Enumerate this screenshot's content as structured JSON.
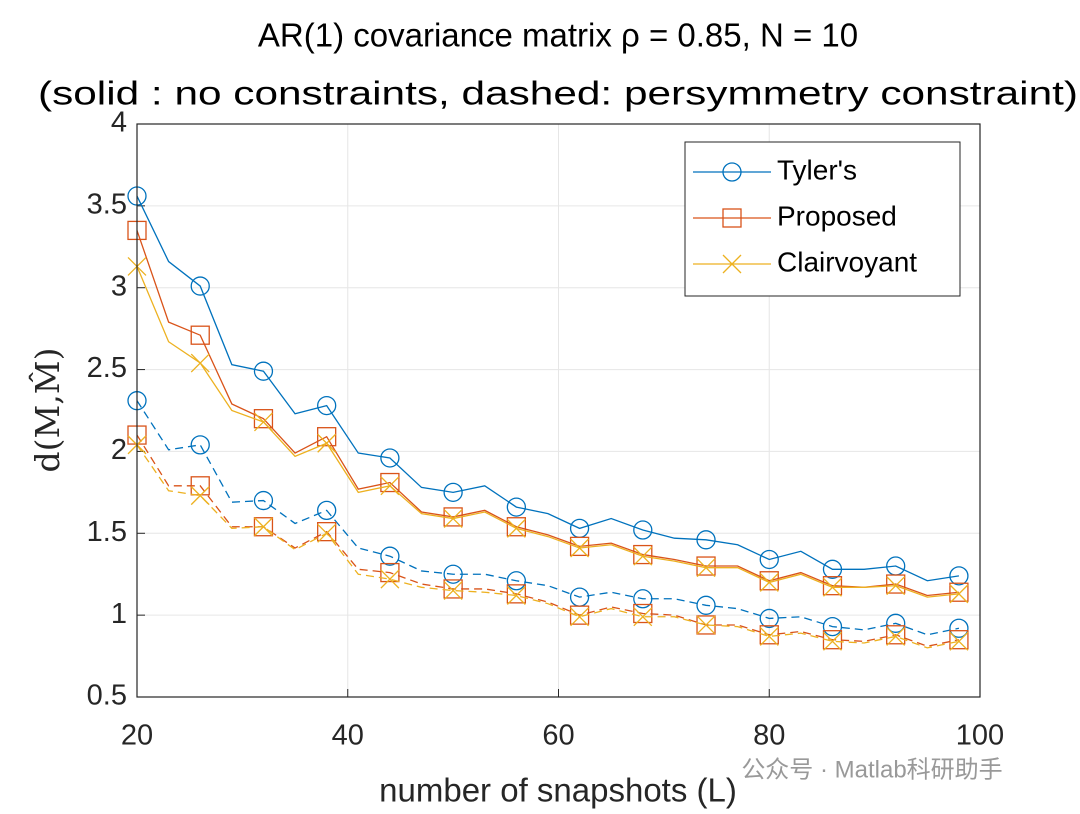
{
  "chart_data": {
    "type": "line",
    "title": "AR(1) covariance matrix ρ = 0.85, N = 10",
    "subtitle": "(solid : no constraints, dashed: persymmetry constraint)",
    "x_label": "number of snapshots (L)",
    "y_label": "d(M,M̂)",
    "watermark": "公众号 · Matlab科研助手",
    "x": [
      20,
      23,
      26,
      29,
      32,
      35,
      38,
      41,
      44,
      47,
      50,
      53,
      56,
      59,
      62,
      65,
      68,
      71,
      74,
      77,
      80,
      83,
      86,
      89,
      92,
      95,
      98
    ],
    "series": [
      {
        "name": "Tyler's",
        "color": "#0072BD",
        "marker": "circle",
        "style": "solid",
        "values": [
          3.56,
          3.16,
          3.01,
          2.53,
          2.49,
          2.23,
          2.28,
          1.99,
          1.96,
          1.78,
          1.75,
          1.79,
          1.66,
          1.62,
          1.53,
          1.59,
          1.52,
          1.47,
          1.46,
          1.43,
          1.34,
          1.39,
          1.28,
          1.28,
          1.3,
          1.21,
          1.24
        ]
      },
      {
        "name": "Proposed",
        "color": "#D95319",
        "marker": "square",
        "style": "solid",
        "values": [
          3.35,
          2.79,
          2.71,
          2.29,
          2.2,
          1.99,
          2.09,
          1.77,
          1.81,
          1.63,
          1.6,
          1.64,
          1.54,
          1.49,
          1.42,
          1.44,
          1.37,
          1.34,
          1.3,
          1.3,
          1.21,
          1.26,
          1.18,
          1.17,
          1.19,
          1.12,
          1.14
        ]
      },
      {
        "name": "Clairvoyant",
        "color": "#EDB120",
        "marker": "x",
        "style": "solid",
        "values": [
          3.13,
          2.67,
          2.54,
          2.25,
          2.18,
          1.97,
          2.05,
          1.75,
          1.79,
          1.62,
          1.59,
          1.63,
          1.53,
          1.48,
          1.41,
          1.43,
          1.36,
          1.33,
          1.29,
          1.29,
          1.2,
          1.25,
          1.17,
          1.17,
          1.18,
          1.11,
          1.13
        ]
      },
      {
        "color": "#0072BD",
        "marker": "circle",
        "style": "dashed",
        "values": [
          2.31,
          2.01,
          2.04,
          1.69,
          1.7,
          1.56,
          1.64,
          1.41,
          1.36,
          1.27,
          1.25,
          1.25,
          1.21,
          1.18,
          1.11,
          1.14,
          1.1,
          1.1,
          1.06,
          1.04,
          0.98,
          0.99,
          0.93,
          0.91,
          0.95,
          0.88,
          0.92
        ]
      },
      {
        "color": "#D95319",
        "marker": "square",
        "style": "dashed",
        "values": [
          2.1,
          1.79,
          1.79,
          1.54,
          1.54,
          1.41,
          1.51,
          1.28,
          1.26,
          1.19,
          1.16,
          1.16,
          1.13,
          1.08,
          1.0,
          1.05,
          1.01,
          1.0,
          0.94,
          0.94,
          0.88,
          0.9,
          0.85,
          0.84,
          0.88,
          0.81,
          0.85
        ]
      },
      {
        "color": "#EDB120",
        "marker": "x",
        "style": "dashed",
        "values": [
          2.04,
          1.76,
          1.73,
          1.53,
          1.54,
          1.4,
          1.5,
          1.25,
          1.22,
          1.17,
          1.15,
          1.14,
          1.12,
          1.07,
          0.99,
          1.04,
          0.99,
          0.99,
          0.94,
          0.93,
          0.87,
          0.89,
          0.84,
          0.83,
          0.87,
          0.8,
          0.84
        ]
      }
    ],
    "xlim": [
      20,
      100
    ],
    "xticks": [
      20,
      40,
      60,
      80,
      100
    ],
    "ylim": [
      0.5,
      4
    ],
    "yticks": [
      0.5,
      1,
      1.5,
      2,
      2.5,
      3,
      3.5,
      4
    ],
    "grid": true,
    "legend": "upper right"
  }
}
